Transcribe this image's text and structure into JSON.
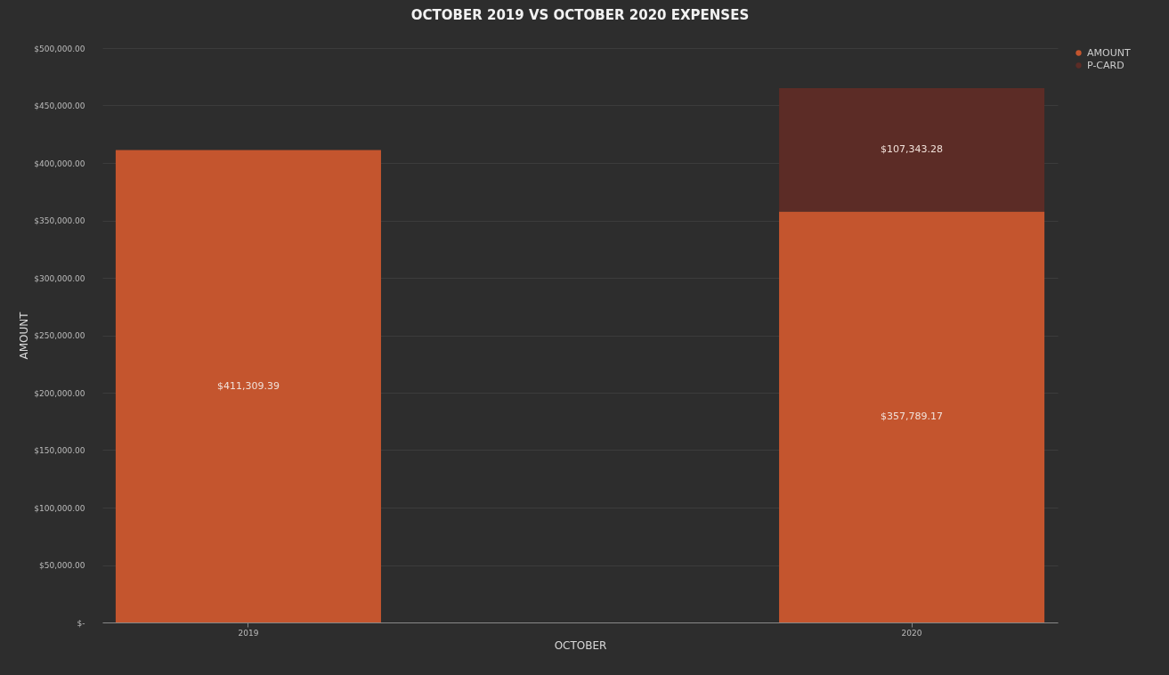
{
  "chart_data": {
    "type": "bar",
    "title": "OCTOBER 2019 VS OCTOBER 2020 EXPENSES",
    "xlabel": "OCTOBER",
    "ylabel": "AMOUNT",
    "categories": [
      "2019",
      "2020"
    ],
    "stacked": true,
    "series": [
      {
        "name": "AMOUNT",
        "color": "#c4552e",
        "values": [
          411309.39,
          357789.17
        ],
        "value_labels": [
          "$411,309.39",
          "$357,789.17"
        ]
      },
      {
        "name": "P-CARD",
        "color": "#5c2c26",
        "values": [
          null,
          107343.28
        ],
        "value_labels": [
          null,
          "$107,343.28"
        ]
      }
    ],
    "ylim": [
      0,
      500000
    ],
    "yticks": [
      {
        "value": 0,
        "label": "$-"
      },
      {
        "value": 50000,
        "label": "$50,000.00"
      },
      {
        "value": 100000,
        "label": "$100,000.00"
      },
      {
        "value": 150000,
        "label": "$150,000.00"
      },
      {
        "value": 200000,
        "label": "$200,000.00"
      },
      {
        "value": 250000,
        "label": "$250,000.00"
      },
      {
        "value": 300000,
        "label": "$300,000.00"
      },
      {
        "value": 350000,
        "label": "$350,000.00"
      },
      {
        "value": 400000,
        "label": "$400,000.00"
      },
      {
        "value": 450000,
        "label": "$450,000.00"
      },
      {
        "value": 500000,
        "label": "$500,000.00"
      }
    ],
    "grid": "y",
    "legend": "right"
  }
}
